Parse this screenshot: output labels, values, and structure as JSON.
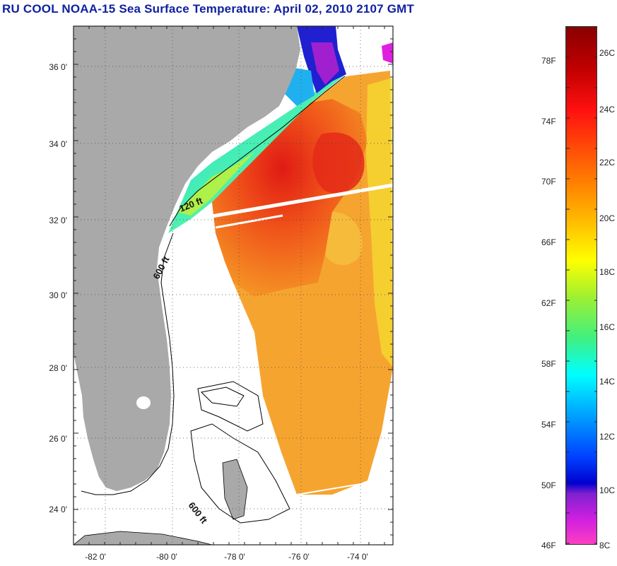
{
  "title": "RU COOL  NOAA-15  Sea Surface Temperature:  April 02, 2010 2107 GMT",
  "map": {
    "y_labels": [
      "36 0'",
      "34 0'",
      "32 0'",
      "30 0'",
      "28 0'",
      "26 0'",
      "24 0'"
    ],
    "x_labels": [
      "-82 0'",
      "-80 0'",
      "-78 0'",
      "-76 0'",
      "-74 0'"
    ],
    "contour_labels": [
      "120 ft",
      "600 ft",
      "600 ft"
    ],
    "colors": {
      "land": "#a9a9a9",
      "ocean_blank": "#ffffff",
      "gulf_stream": "#e8231a",
      "shelf_warm": "#f5a623"
    }
  },
  "colorbar": {
    "fahrenheit_labels": [
      "78F",
      "74F",
      "70F",
      "66F",
      "62F",
      "58F",
      "54F",
      "50F",
      "46F"
    ],
    "celsius_labels": [
      "26C",
      "24C",
      "22C",
      "20C",
      "18C",
      "16C",
      "14C",
      "12C",
      "10C",
      "8C"
    ]
  }
}
